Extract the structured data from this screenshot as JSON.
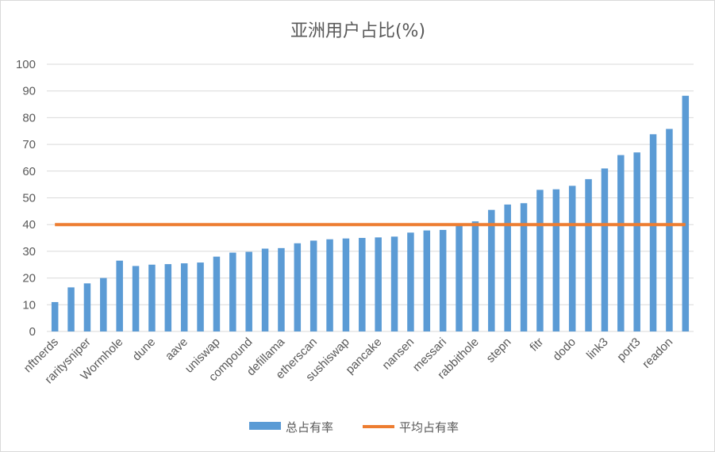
{
  "chart_data": {
    "type": "bar",
    "title": "亚洲用户占比(%)",
    "ylim": [
      0,
      100
    ],
    "yticks": [
      0,
      10,
      20,
      30,
      40,
      50,
      60,
      70,
      80,
      90,
      100
    ],
    "grid": true,
    "legend_position": "bottom",
    "categories": [
      "nftnerds",
      "",
      "raritysniper",
      "",
      "Wormhole",
      "",
      "dune",
      "",
      "aave",
      "",
      "uniswap",
      "",
      "compound",
      "",
      "defillama",
      "",
      "etherscan",
      "",
      "sushiswap",
      "",
      "pancake",
      "",
      "nansen",
      "",
      "messari",
      "",
      "rabbithole",
      "",
      "stepn",
      "",
      "fitr",
      "",
      "dodo",
      "",
      "link3",
      "",
      "port3",
      "",
      "readon",
      ""
    ],
    "series": [
      {
        "name": "总占有率",
        "type": "bar",
        "color": "#5b9bd5",
        "values": [
          11,
          16.5,
          18,
          20,
          26.5,
          24.5,
          25,
          25.2,
          25.5,
          25.8,
          28,
          29.5,
          29.8,
          31,
          31.2,
          33,
          34,
          34.5,
          34.8,
          35,
          35.2,
          35.5,
          37,
          37.8,
          38,
          40,
          41.2,
          45.5,
          47.5,
          48,
          53,
          53.2,
          54.5,
          57,
          61,
          66,
          67,
          73.8,
          75.8,
          88.2
        ]
      },
      {
        "name": "平均占有率",
        "type": "line",
        "color": "#ed7d31",
        "value": 40
      }
    ]
  }
}
